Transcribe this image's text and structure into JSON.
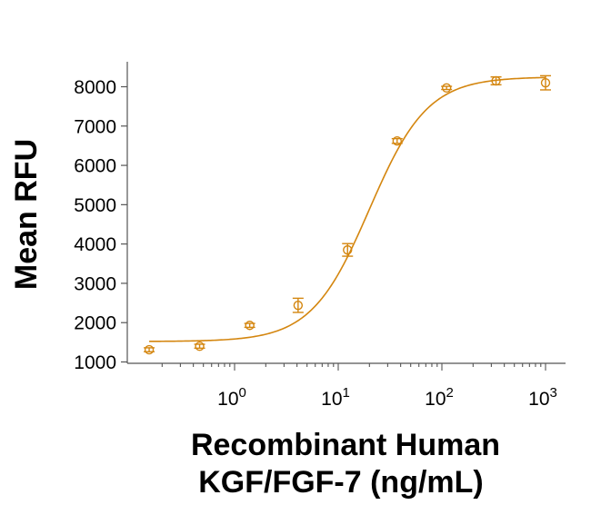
{
  "chart_data": {
    "type": "scatter",
    "title": "",
    "ylabel": "Mean RFU",
    "xlabel_line1": "Recombinant Human",
    "xlabel_line2": "KGF/FGF-7 (ng/mL)",
    "x_scale": "log10",
    "xlim": [
      0.13,
      2000
    ],
    "ylim": [
      1000,
      8400
    ],
    "y_ticks": [
      1000,
      2000,
      3000,
      4000,
      5000,
      6000,
      7000,
      8000
    ],
    "x_ticks": [
      {
        "value": 1,
        "base": "10",
        "exp": "0"
      },
      {
        "value": 10,
        "base": "10",
        "exp": "1"
      },
      {
        "value": 100,
        "base": "10",
        "exp": "2"
      },
      {
        "value": 1000,
        "base": "10",
        "exp": "3"
      }
    ],
    "grid": false,
    "legend": "none",
    "color": "#D4860F",
    "series": [
      {
        "points": [
          {
            "x": 0.15,
            "y": 1310,
            "err": 50
          },
          {
            "x": 0.46,
            "y": 1400,
            "err": 50
          },
          {
            "x": 1.4,
            "y": 1930,
            "err": 50
          },
          {
            "x": 4.1,
            "y": 2440,
            "err": 180
          },
          {
            "x": 12.3,
            "y": 3850,
            "err": 160
          },
          {
            "x": 37,
            "y": 6620,
            "err": 60
          },
          {
            "x": 111,
            "y": 7970,
            "err": 40
          },
          {
            "x": 333,
            "y": 8150,
            "err": 100
          },
          {
            "x": 1000,
            "y": 8100,
            "err": 180
          }
        ],
        "fit": {
          "model": "4PL",
          "bottom": 1520,
          "top": 8250,
          "ec50": 20,
          "hill": 1.55
        }
      }
    ]
  }
}
